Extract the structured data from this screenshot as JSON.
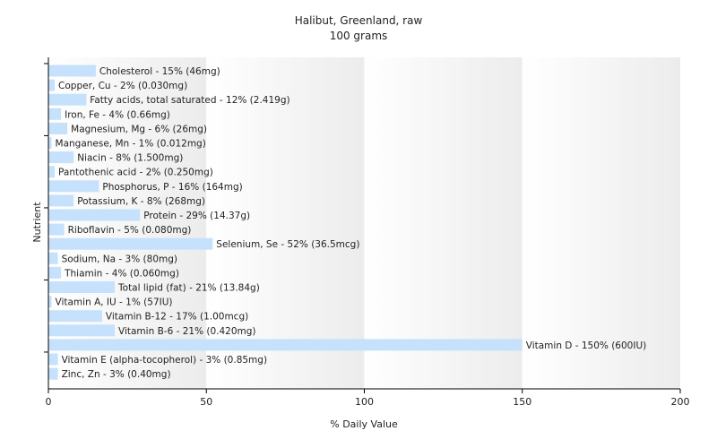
{
  "chart_data": {
    "type": "bar",
    "orientation": "horizontal",
    "title": "Halibut, Greenland, raw",
    "subtitle": "100 grams",
    "xlabel": "% Daily Value",
    "ylabel": "Nutrient",
    "xlim": [
      0,
      200
    ],
    "xticks": [
      0,
      50,
      100,
      150,
      200
    ],
    "grid": "vertical bands",
    "legend": "none",
    "bar_color": "#c6e1fb",
    "categories": [
      "Cholesterol",
      "Copper, Cu",
      "Fatty acids, total saturated",
      "Iron, Fe",
      "Magnesium, Mg",
      "Manganese, Mn",
      "Niacin",
      "Pantothenic acid",
      "Phosphorus, P",
      "Potassium, K",
      "Protein",
      "Riboflavin",
      "Selenium, Se",
      "Sodium, Na",
      "Thiamin",
      "Total lipid (fat)",
      "Vitamin A, IU",
      "Vitamin B-12",
      "Vitamin B-6",
      "Vitamin D",
      "Vitamin E (alpha-tocopherol)",
      "Zinc, Zn"
    ],
    "values": [
      15,
      2,
      12,
      4,
      6,
      1,
      8,
      2,
      16,
      8,
      29,
      5,
      52,
      3,
      4,
      21,
      1,
      17,
      21,
      150,
      3,
      3
    ],
    "labels": [
      "Cholesterol - 15% (46mg)",
      "Copper, Cu - 2% (0.030mg)",
      "Fatty acids, total saturated - 12% (2.419g)",
      "Iron, Fe - 4% (0.66mg)",
      "Magnesium, Mg - 6% (26mg)",
      "Manganese, Mn - 1% (0.012mg)",
      "Niacin - 8% (1.500mg)",
      "Pantothenic acid - 2% (0.250mg)",
      "Phosphorus, P - 16% (164mg)",
      "Potassium, K - 8% (268mg)",
      "Protein - 29% (14.37g)",
      "Riboflavin - 5% (0.080mg)",
      "Selenium, Se - 52% (36.5mcg)",
      "Sodium, Na - 3% (80mg)",
      "Thiamin - 4% (0.060mg)",
      "Total lipid (fat) - 21% (13.84g)",
      "Vitamin A, IU - 1% (57IU)",
      "Vitamin B-12 - 17% (1.00mcg)",
      "Vitamin B-6 - 21% (0.420mg)",
      "Vitamin D - 150% (600IU)",
      "Vitamin E (alpha-tocopherol) - 3% (0.85mg)",
      "Zinc, Zn - 3% (0.40mg)"
    ]
  }
}
